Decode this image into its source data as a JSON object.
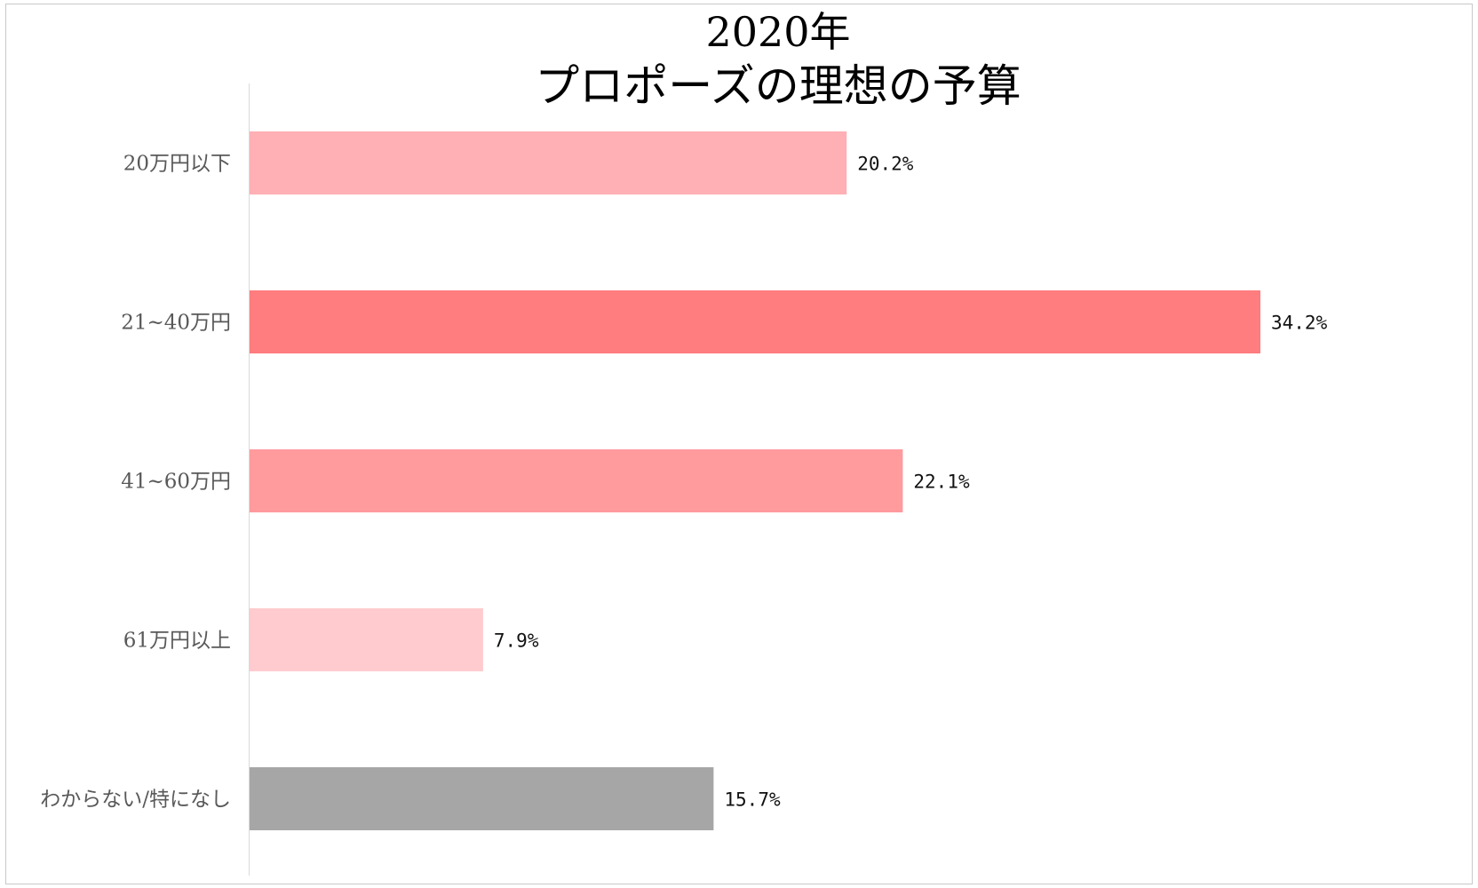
{
  "chart_data": {
    "type": "bar",
    "orientation": "horizontal",
    "title": [
      "2020年",
      "プロポーズの理想の予算"
    ],
    "categories": [
      "20万円以下",
      "21~40万円",
      "41~60万円",
      "61万円以上",
      "わからない/特になし"
    ],
    "values": [
      20.2,
      34.2,
      22.1,
      7.9,
      15.7
    ],
    "value_labels": [
      "20.2%",
      "34.2%",
      "22.1%",
      "7.9%",
      "15.7%"
    ],
    "colors": [
      "#FFB0B5",
      "#FF7C7F",
      "#FF9A9D",
      "#FFCBCE",
      "#A6A6A6"
    ],
    "xlim": [
      0,
      34.2
    ],
    "xlabel": "",
    "ylabel": "",
    "grid": false,
    "legend": "none"
  }
}
